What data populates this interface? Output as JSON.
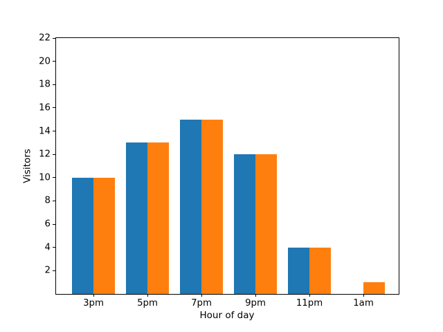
{
  "chart_data": {
    "type": "bar",
    "title": "",
    "xlabel": "Hour of day",
    "ylabel": "Visitors",
    "categories": [
      "3pm",
      "5pm",
      "7pm",
      "9pm",
      "11pm",
      "1am"
    ],
    "series": [
      {
        "name": "series-blue",
        "color": "#1f77b4",
        "values": [
          10,
          13,
          15,
          12,
          4,
          0
        ]
      },
      {
        "name": "series-orange",
        "color": "#ff7f0e",
        "values": [
          10,
          13,
          15,
          12,
          4,
          1
        ]
      }
    ],
    "ylim": [
      0,
      22
    ],
    "yticks": [
      2,
      4,
      6,
      8,
      10,
      12,
      14,
      16,
      18,
      20,
      22
    ],
    "bar_width": 0.4,
    "grid": false,
    "legend": "none",
    "colors": {
      "background": "#ffffff",
      "axis": "#000000",
      "text": "#000000"
    }
  }
}
